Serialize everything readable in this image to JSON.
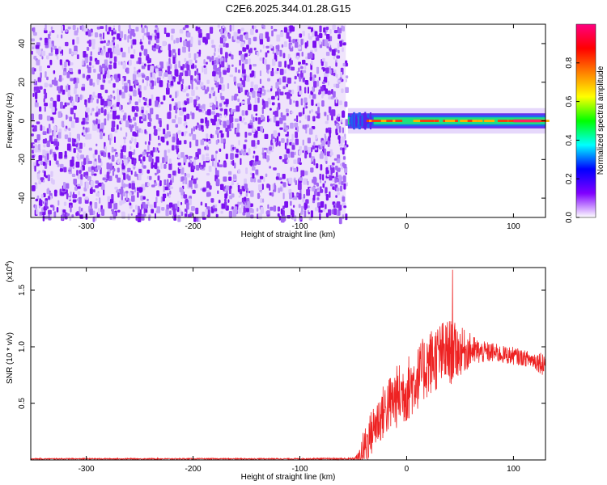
{
  "title": "C2E6.2025.344.01.28.G15",
  "chart_data": [
    {
      "type": "heatmap",
      "xlabel": "Height of straight line (km)",
      "ylabel": "Frequency (Hz)",
      "xlim": [
        -352,
        130
      ],
      "ylim": [
        -50,
        50
      ],
      "x_ticks": [
        -300,
        -200,
        -100,
        0,
        100
      ],
      "x_tick_labels": [
        "-300",
        "-200",
        "-100",
        "0",
        "100"
      ],
      "y_ticks": [
        -40,
        -20,
        0,
        20,
        40
      ],
      "y_tick_labels": [
        "-40",
        "-20",
        "0",
        "20",
        "40"
      ],
      "noise_region_x": [
        -352,
        -57
      ],
      "signal_band_x": [
        -55,
        130
      ],
      "signal_center_freq_hz": 0,
      "signal_band_halfwidth_hz": 3,
      "colorbar": {
        "label": "Normalized spectral amplitude",
        "range": [
          0,
          1
        ],
        "ticks": [
          0.0,
          0.2,
          0.4,
          0.6,
          0.8
        ],
        "tick_labels": [
          "0.0",
          "0.2",
          "0.4",
          "0.6",
          "0.8"
        ],
        "colors": [
          "#ffffff",
          "#8000ff",
          "#0000ff",
          "#00ffff",
          "#00ff00",
          "#ffff00",
          "#ff8000",
          "#ff0000",
          "#ff0080"
        ]
      },
      "grid": false
    },
    {
      "type": "line",
      "xlabel": "Height of straight line (km)",
      "ylabel": "SNR (10 * v/v)",
      "y_multiplier_label": "(x10",
      "y_multiplier_exp": "4",
      "y_multiplier_close": ")",
      "xlim": [
        -352,
        130
      ],
      "ylim": [
        0,
        1.7
      ],
      "x_ticks": [
        -300,
        -200,
        -100,
        0,
        100
      ],
      "x_tick_labels": [
        "-300",
        "-200",
        "-100",
        "0",
        "100"
      ],
      "y_ticks": [
        0.5,
        1.0,
        1.5
      ],
      "y_tick_labels": [
        "0.5",
        "1.0",
        "1.5"
      ],
      "series": [
        {
          "color": "#ee2222",
          "envelope_x": [
            -352,
            -100,
            -50,
            -45,
            -40,
            -30,
            -20,
            -10,
            0,
            10,
            20,
            30,
            40,
            50,
            60,
            70,
            80,
            90,
            100,
            110,
            120,
            130
          ],
          "envelope_mid": [
            0.01,
            0.01,
            0.01,
            0.02,
            0.1,
            0.3,
            0.45,
            0.55,
            0.62,
            0.72,
            0.85,
            0.92,
            0.95,
            0.96,
            0.97,
            0.95,
            0.95,
            0.93,
            0.92,
            0.9,
            0.88,
            0.85
          ],
          "envelope_spread": [
            0.005,
            0.005,
            0.01,
            0.05,
            0.18,
            0.22,
            0.25,
            0.28,
            0.3,
            0.28,
            0.3,
            0.3,
            0.3,
            0.22,
            0.15,
            0.1,
            0.09,
            0.08,
            0.08,
            0.07,
            0.08,
            0.12
          ],
          "peak_x": 43,
          "peak_y": 1.68
        }
      ],
      "grid": false
    }
  ]
}
